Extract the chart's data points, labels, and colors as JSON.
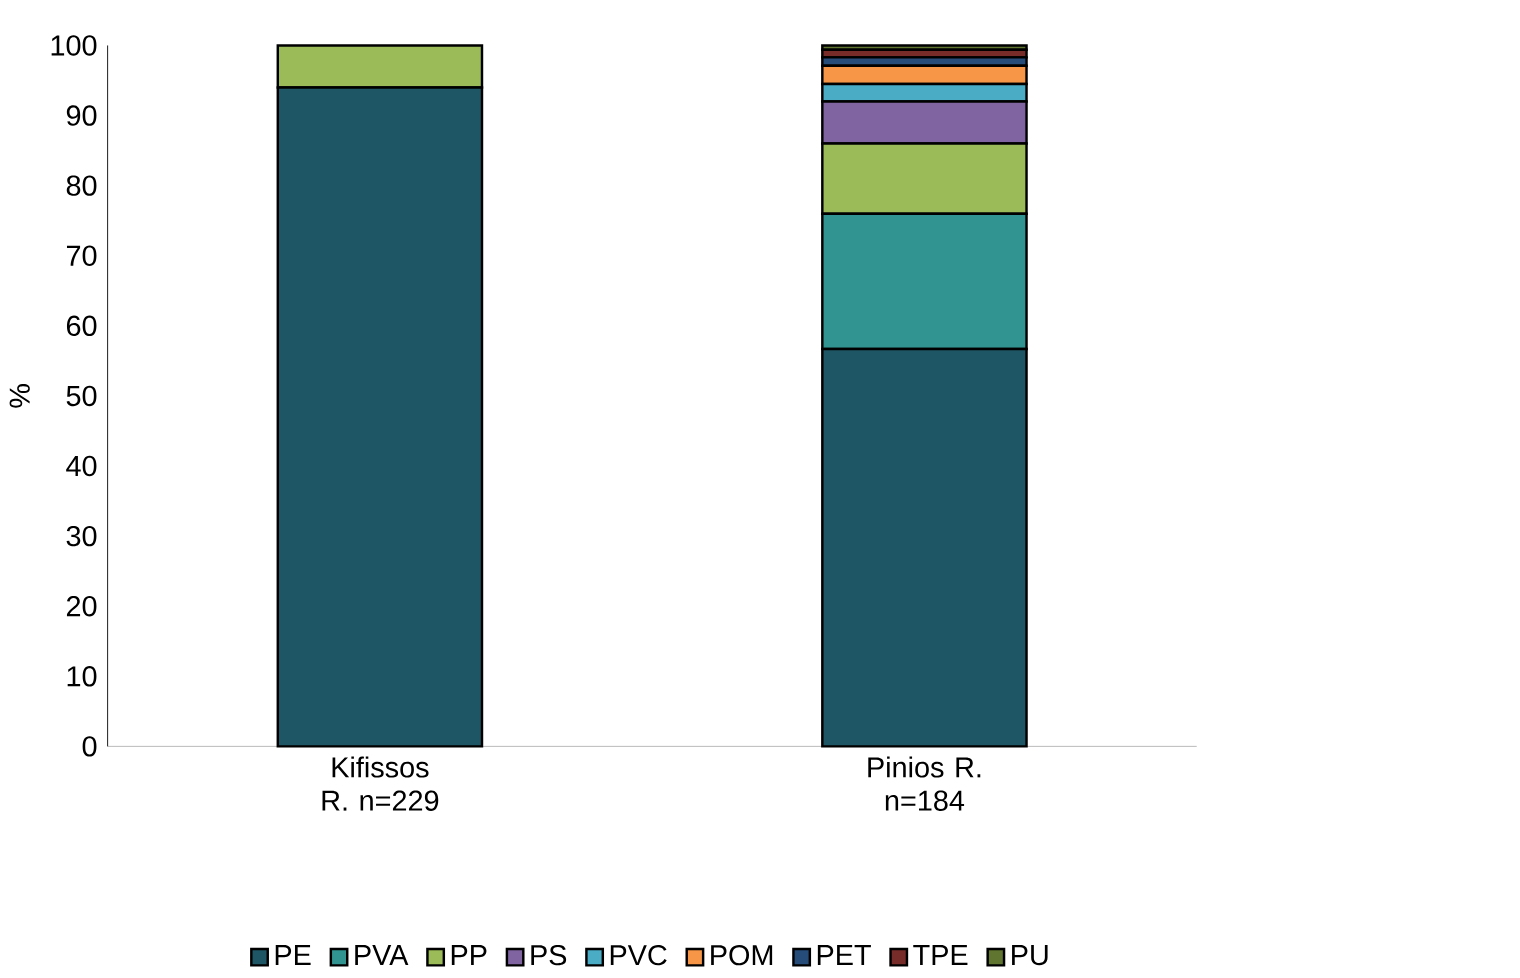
{
  "chart_data": {
    "type": "bar",
    "stacked": true,
    "ylabel": "%",
    "categories": [
      "Kifissos R. n=229",
      "Pinios R. n=184"
    ],
    "series": [
      {
        "name": "PE",
        "color": "#1f5665",
        "values": [
          94,
          56.7
        ]
      },
      {
        "name": "PVA",
        "color": "#329490",
        "values": [
          0,
          19.3
        ]
      },
      {
        "name": "PP",
        "color": "#9bbb59",
        "values": [
          6,
          10
        ]
      },
      {
        "name": "PS",
        "color": "#8064a2",
        "values": [
          0,
          6
        ]
      },
      {
        "name": "PVC",
        "color": "#4bacc6",
        "values": [
          0,
          2.5
        ]
      },
      {
        "name": "POM",
        "color": "#f79646",
        "values": [
          0,
          2.6
        ]
      },
      {
        "name": "PET",
        "color": "#264d7a",
        "values": [
          0,
          1.2
        ]
      },
      {
        "name": "TPE",
        "color": "#772c2a",
        "values": [
          0,
          1.1
        ]
      },
      {
        "name": "PU",
        "color": "#5f7530",
        "values": [
          0,
          0.6
        ]
      }
    ],
    "ylim": [
      0,
      100
    ],
    "yticks": [
      0,
      10,
      20,
      30,
      40,
      50,
      60,
      70,
      80,
      90,
      100
    ],
    "legend": "bottom",
    "grid": false
  }
}
